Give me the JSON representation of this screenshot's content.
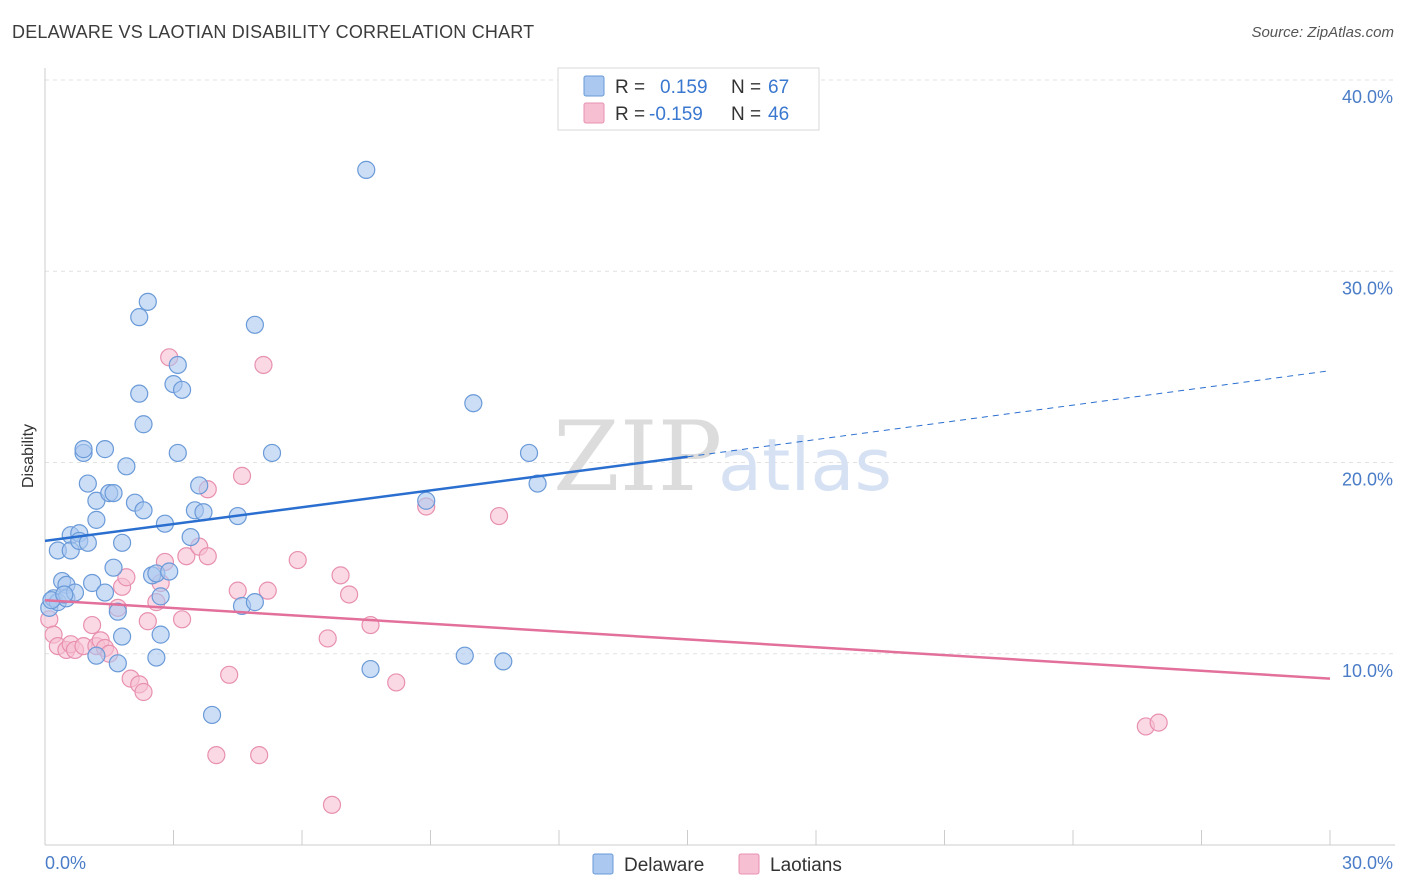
{
  "title": "DELAWARE VS LAOTIAN DISABILITY CORRELATION CHART",
  "source": "Source: ZipAtlas.com",
  "watermark": {
    "zip": "ZIP",
    "atlas": "atlas"
  },
  "legend_top": {
    "rows": [
      {
        "r_label": "R =",
        "r_value": "0.159",
        "n_label": "N =",
        "n_value": "67"
      },
      {
        "r_label": "R =",
        "r_value": "-0.159",
        "n_label": "N =",
        "n_value": "46"
      }
    ]
  },
  "legend_bottom": [
    "Delaware",
    "Laotians"
  ],
  "colors": {
    "delaware_fill": "#aac8f0",
    "delaware_stroke": "#6a9ad8",
    "delaware_line": "#2a6fd0",
    "laotians_fill": "#f6bfd2",
    "laotians_stroke": "#e890b0",
    "laotians_line": "#e2709a",
    "tick": "#4a7cc7",
    "grid": "#e2e2e2"
  },
  "chart_data": {
    "type": "scatter",
    "title": "DELAWARE VS LAOTIAN DISABILITY CORRELATION CHART",
    "xlabel": "",
    "ylabel": "Disability",
    "xlim": [
      0,
      30
    ],
    "ylim": [
      0,
      40
    ],
    "x_tick_labels": [
      "0.0%",
      "30.0%"
    ],
    "y_ticks": [
      10,
      20,
      30,
      40
    ],
    "y_tick_labels": [
      "10.0%",
      "20.0%",
      "30.0%",
      "40.0%"
    ],
    "grid": true,
    "legend_placement": "top-center",
    "series": [
      {
        "name": "Delaware",
        "R": 0.159,
        "N": 67,
        "trend": {
          "x": [
            0,
            15
          ],
          "y": [
            15.9,
            20.3
          ],
          "extension_x": [
            15,
            30
          ],
          "extension_y": [
            20.3,
            24.8
          ]
        },
        "points": [
          [
            0.1,
            12.4
          ],
          [
            0.2,
            12.9
          ],
          [
            0.3,
            15.4
          ],
          [
            0.3,
            12.7
          ],
          [
            0.4,
            13.8
          ],
          [
            0.5,
            13.6
          ],
          [
            0.5,
            12.9
          ],
          [
            0.6,
            16.2
          ],
          [
            0.6,
            15.4
          ],
          [
            0.7,
            13.2
          ],
          [
            0.8,
            16.3
          ],
          [
            0.8,
            15.9
          ],
          [
            0.9,
            20.5
          ],
          [
            0.9,
            20.7
          ],
          [
            1.0,
            18.9
          ],
          [
            1.0,
            15.8
          ],
          [
            1.1,
            13.7
          ],
          [
            1.2,
            18.0
          ],
          [
            1.2,
            17.0
          ],
          [
            1.2,
            9.9
          ],
          [
            1.4,
            20.7
          ],
          [
            1.4,
            13.2
          ],
          [
            1.5,
            18.4
          ],
          [
            1.6,
            14.5
          ],
          [
            1.6,
            18.4
          ],
          [
            1.7,
            9.5
          ],
          [
            1.7,
            12.2
          ],
          [
            1.8,
            15.8
          ],
          [
            1.8,
            10.9
          ],
          [
            1.9,
            19.8
          ],
          [
            2.1,
            17.9
          ],
          [
            2.2,
            27.6
          ],
          [
            2.2,
            23.6
          ],
          [
            2.3,
            17.5
          ],
          [
            2.3,
            22.0
          ],
          [
            2.4,
            28.4
          ],
          [
            2.5,
            14.1
          ],
          [
            2.6,
            14.2
          ],
          [
            2.6,
            9.8
          ],
          [
            2.7,
            13.0
          ],
          [
            2.7,
            11.0
          ],
          [
            2.8,
            16.8
          ],
          [
            2.9,
            14.3
          ],
          [
            3.0,
            24.1
          ],
          [
            3.1,
            25.1
          ],
          [
            3.1,
            20.5
          ],
          [
            3.2,
            23.8
          ],
          [
            3.4,
            16.1
          ],
          [
            3.5,
            17.5
          ],
          [
            3.6,
            18.8
          ],
          [
            3.7,
            17.4
          ],
          [
            3.9,
            6.8
          ],
          [
            4.5,
            17.2
          ],
          [
            4.6,
            12.5
          ],
          [
            4.9,
            12.7
          ],
          [
            4.9,
            27.2
          ],
          [
            5.3,
            20.5
          ],
          [
            7.5,
            35.3
          ],
          [
            7.6,
            9.2
          ],
          [
            8.9,
            18.0
          ],
          [
            9.8,
            9.9
          ],
          [
            10.0,
            23.1
          ],
          [
            10.7,
            9.6
          ],
          [
            11.3,
            20.5
          ],
          [
            11.5,
            18.9
          ],
          [
            0.15,
            12.8
          ],
          [
            0.45,
            13.1
          ]
        ]
      },
      {
        "name": "Laotians",
        "R": -0.159,
        "N": 46,
        "trend": {
          "x": [
            0,
            30
          ],
          "y": [
            12.8,
            8.7
          ]
        },
        "points": [
          [
            0.1,
            11.8
          ],
          [
            0.2,
            11.0
          ],
          [
            0.3,
            10.4
          ],
          [
            0.5,
            10.2
          ],
          [
            0.6,
            10.5
          ],
          [
            0.7,
            10.2
          ],
          [
            0.9,
            10.4
          ],
          [
            1.1,
            11.5
          ],
          [
            1.2,
            10.4
          ],
          [
            1.3,
            10.7
          ],
          [
            1.4,
            10.3
          ],
          [
            1.5,
            10.0
          ],
          [
            1.7,
            12.4
          ],
          [
            1.8,
            13.5
          ],
          [
            1.9,
            14.0
          ],
          [
            2.0,
            8.7
          ],
          [
            2.2,
            8.4
          ],
          [
            2.3,
            8.0
          ],
          [
            2.4,
            11.7
          ],
          [
            2.6,
            12.7
          ],
          [
            2.7,
            13.7
          ],
          [
            2.8,
            14.8
          ],
          [
            2.9,
            25.5
          ],
          [
            3.2,
            11.8
          ],
          [
            3.3,
            15.1
          ],
          [
            3.6,
            15.6
          ],
          [
            3.8,
            15.1
          ],
          [
            3.8,
            18.6
          ],
          [
            4.0,
            4.7
          ],
          [
            4.3,
            8.9
          ],
          [
            4.5,
            13.3
          ],
          [
            4.6,
            19.3
          ],
          [
            5.0,
            4.7
          ],
          [
            5.1,
            25.1
          ],
          [
            5.2,
            13.3
          ],
          [
            5.9,
            14.9
          ],
          [
            6.6,
            10.8
          ],
          [
            6.7,
            2.1
          ],
          [
            6.9,
            14.1
          ],
          [
            7.1,
            13.1
          ],
          [
            7.6,
            11.5
          ],
          [
            8.2,
            8.5
          ],
          [
            8.9,
            17.7
          ],
          [
            10.6,
            17.2
          ],
          [
            25.7,
            6.2
          ],
          [
            26.0,
            6.4
          ]
        ]
      }
    ]
  }
}
